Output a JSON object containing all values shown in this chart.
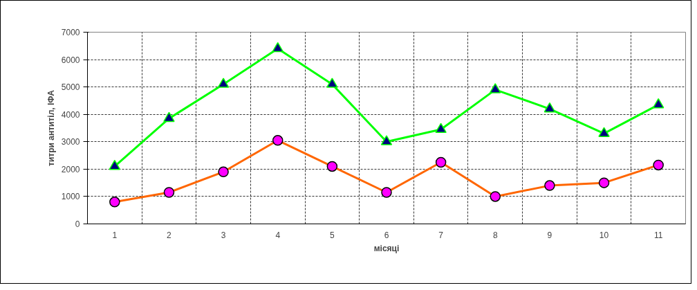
{
  "chart_data": {
    "type": "line",
    "xlabel": "місяці",
    "ylabel": "титри антитіл, ІФА",
    "categories": [
      "1",
      "2",
      "3",
      "4",
      "5",
      "6",
      "7",
      "8",
      "9",
      "10",
      "11"
    ],
    "series": [
      {
        "color": "#00ff00",
        "marker": "triangle",
        "values": [
          2100,
          3850,
          5100,
          6400,
          5100,
          3000,
          3450,
          4900,
          4200,
          3300,
          4350
        ]
      },
      {
        "color": "#ff6600",
        "marker": "circle",
        "values": [
          800,
          1150,
          1900,
          3050,
          2100,
          1150,
          2250,
          1000,
          1400,
          1500,
          2150
        ]
      }
    ],
    "ylim": [
      0,
      7000
    ],
    "yticks": [
      0,
      1000,
      2000,
      3000,
      4000,
      5000,
      6000,
      7000
    ],
    "grid": true,
    "line_style": "solid"
  }
}
